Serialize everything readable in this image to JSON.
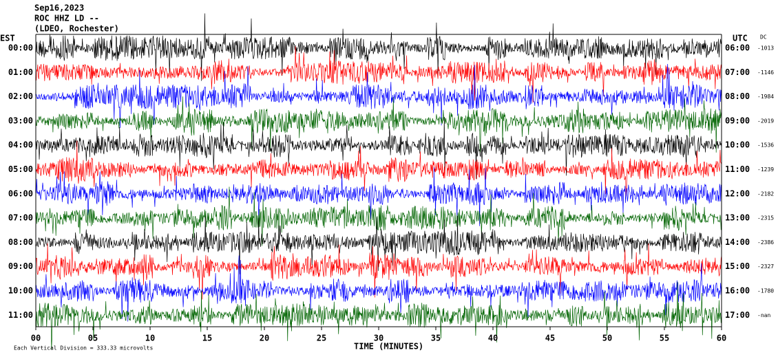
{
  "header": {
    "date": "Sep16,2023",
    "station": "ROC HHZ LD --",
    "network": "(LDEO, Rochester)"
  },
  "left_axis": {
    "title": "EST",
    "labels": [
      "00:00",
      "01:00",
      "02:00",
      "03:00",
      "04:00",
      "05:00",
      "06:00",
      "07:00",
      "08:00",
      "09:00",
      "10:00",
      "11:00"
    ]
  },
  "right_axis": {
    "title": "UTC",
    "labels": [
      "06:00",
      "07:00",
      "08:00",
      "09:00",
      "10:00",
      "11:00",
      "12:00",
      "13:00",
      "14:00",
      "15:00",
      "16:00",
      "17:00"
    ]
  },
  "dc": {
    "title": "DC",
    "values": [
      "-1013",
      "-1146",
      "-1984",
      "-2019",
      "-1536",
      "-1239",
      "-2182",
      "-2315",
      "-2386",
      "-2327",
      "-1780",
      "-nan"
    ]
  },
  "x_axis": {
    "title": "TIME (MINUTES)",
    "ticks": [
      "00",
      "05",
      "10",
      "15",
      "20",
      "25",
      "30",
      "35",
      "40",
      "45",
      "50",
      "55",
      "60"
    ]
  },
  "footer": "Each Vertical Division = 333.33 microvolts"
}
